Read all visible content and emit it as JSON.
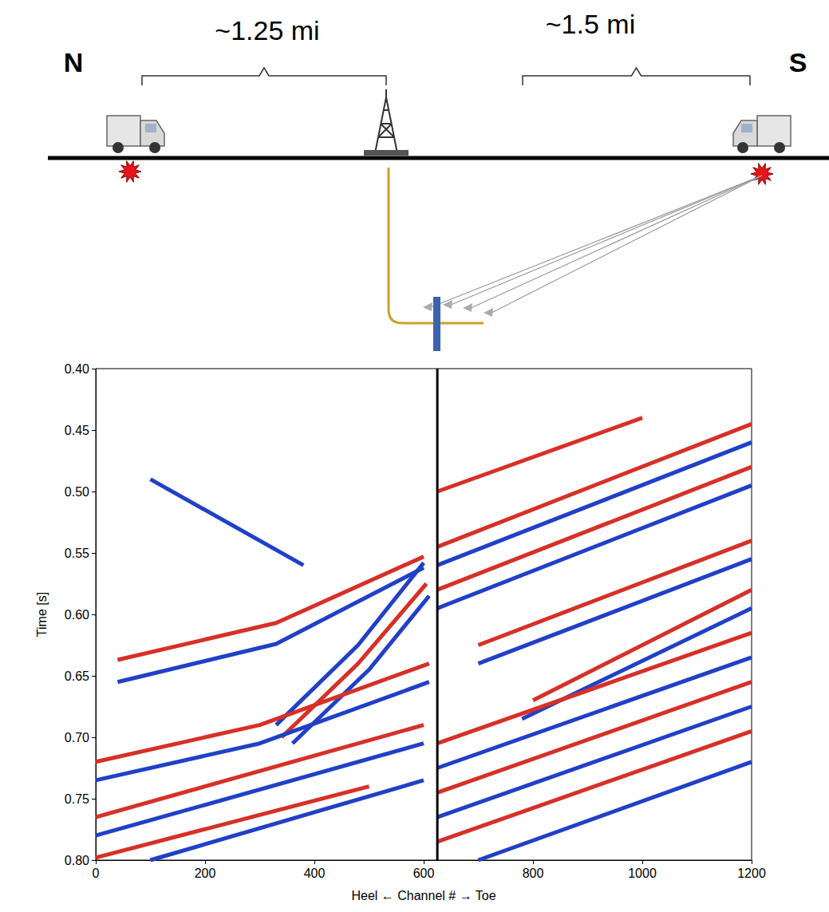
{
  "diagram": {
    "north": "N",
    "south": "S",
    "left_distance": "~1.25 mi",
    "right_distance": "~1.5 mi"
  },
  "chart_data": {
    "type": "line",
    "xlabel": "Heel ← Channel # → Toe",
    "ylabel": "Time [s]",
    "xlim": [
      0,
      1200
    ],
    "xticks": [
      0,
      200,
      400,
      600,
      800,
      1000,
      1200
    ],
    "ylim": [
      0.8,
      0.4
    ],
    "yticks": [
      {
        "value": 0.4,
        "label": "0.40"
      },
      0.45,
      {
        "value": 0.5,
        "label": "0.50"
      },
      0.55,
      {
        "value": 0.6,
        "label": "0.60"
      },
      0.65,
      {
        "value": 0.7,
        "label": "0.70"
      },
      0.75,
      {
        "value": 0.8,
        "label": "0.80"
      }
    ],
    "grid": false,
    "series": [
      {
        "color": "#d73027",
        "x": [
          40,
          330,
          600
        ],
        "values": [
          0.637,
          0.607,
          0.553
        ]
      },
      {
        "color": "#2140c8",
        "x": [
          40,
          330,
          600
        ],
        "values": [
          0.655,
          0.624,
          0.562
        ]
      },
      {
        "color": "#2140c8",
        "x": [
          330,
          480,
          600
        ],
        "values": [
          0.69,
          0.625,
          0.558
        ]
      },
      {
        "color": "#d73027",
        "x": [
          340,
          480,
          605
        ],
        "values": [
          0.7,
          0.64,
          0.575
        ]
      },
      {
        "color": "#2140c8",
        "x": [
          360,
          500,
          610
        ],
        "values": [
          0.705,
          0.645,
          0.585
        ]
      },
      {
        "color": "#d73027",
        "x": [
          0,
          300,
          610
        ],
        "values": [
          0.72,
          0.69,
          0.64
        ]
      },
      {
        "color": "#2140c8",
        "x": [
          0,
          300,
          610
        ],
        "values": [
          0.735,
          0.705,
          0.655
        ]
      },
      {
        "color": "#d73027",
        "x": [
          0,
          600
        ],
        "values": [
          0.765,
          0.69
        ]
      },
      {
        "color": "#2140c8",
        "x": [
          0,
          600
        ],
        "values": [
          0.78,
          0.705
        ]
      },
      {
        "color": "#d73027",
        "x": [
          0,
          500
        ],
        "values": [
          0.798,
          0.74
        ]
      },
      {
        "color": "#2140c8",
        "x": [
          100,
          600
        ],
        "values": [
          0.8,
          0.735
        ]
      },
      {
        "color": "#2140c8",
        "x": [
          100,
          380
        ],
        "values": [
          0.49,
          0.56
        ]
      },
      {
        "color": "#d73027",
        "x": [
          625,
          1200
        ],
        "values": [
          0.545,
          0.445
        ]
      },
      {
        "color": "#2140c8",
        "x": [
          625,
          1200
        ],
        "values": [
          0.56,
          0.46
        ]
      },
      {
        "color": "#d73027",
        "x": [
          625,
          1200
        ],
        "values": [
          0.58,
          0.48
        ]
      },
      {
        "color": "#2140c8",
        "x": [
          625,
          1200
        ],
        "values": [
          0.595,
          0.495
        ]
      },
      {
        "color": "#d73027",
        "x": [
          700,
          1200
        ],
        "values": [
          0.625,
          0.54
        ]
      },
      {
        "color": "#2140c8",
        "x": [
          700,
          1200
        ],
        "values": [
          0.64,
          0.555
        ]
      },
      {
        "color": "#d73027",
        "x": [
          800,
          1200
        ],
        "values": [
          0.67,
          0.58
        ]
      },
      {
        "color": "#2140c8",
        "x": [
          780,
          1200
        ],
        "values": [
          0.685,
          0.595
        ]
      },
      {
        "color": "#d73027",
        "x": [
          625,
          1200
        ],
        "values": [
          0.705,
          0.615
        ]
      },
      {
        "color": "#2140c8",
        "x": [
          625,
          1200
        ],
        "values": [
          0.725,
          0.635
        ]
      },
      {
        "color": "#d73027",
        "x": [
          625,
          1200
        ],
        "values": [
          0.745,
          0.655
        ]
      },
      {
        "color": "#2140c8",
        "x": [
          625,
          1200
        ],
        "values": [
          0.765,
          0.675
        ]
      },
      {
        "color": "#d73027",
        "x": [
          625,
          1200
        ],
        "values": [
          0.785,
          0.695
        ]
      },
      {
        "color": "#2140c8",
        "x": [
          700,
          1200
        ],
        "values": [
          0.8,
          0.72
        ]
      },
      {
        "color": "#d73027",
        "x": [
          625,
          1000
        ],
        "values": [
          0.5,
          0.44
        ]
      },
      {
        "color": "#000000",
        "x": [
          625,
          625
        ],
        "values": [
          0.4,
          0.8
        ]
      }
    ]
  }
}
